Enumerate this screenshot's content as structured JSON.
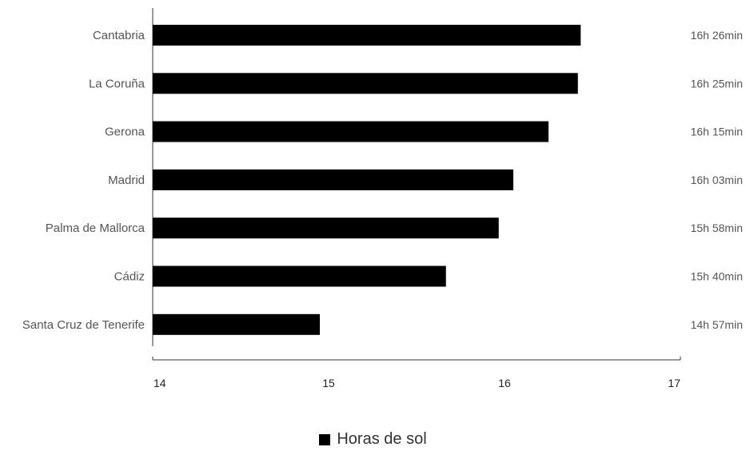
{
  "chart_data": {
    "type": "bar",
    "orientation": "horizontal",
    "categories": [
      "Cantabria",
      "La Coruña",
      "Gerona",
      "Madrid",
      "Palma de Mallorca",
      "Cádiz",
      "Santa Cruz de Tenerife"
    ],
    "series": [
      {
        "name": "Horas de sol",
        "values": [
          16.433,
          16.417,
          16.25,
          16.05,
          15.967,
          15.667,
          14.95
        ],
        "value_labels": [
          "16h 26min",
          "16h 25min",
          "16h 15min",
          "16h 03min",
          "15h 58min",
          "15h 40min",
          "14h 57min"
        ],
        "color": "#000000"
      }
    ],
    "xlim": [
      14,
      17
    ],
    "xticks": [
      "14",
      "15",
      "16",
      "17"
    ],
    "title": "",
    "xlabel": "",
    "ylabel": "",
    "grid": false,
    "legend_position": "bottom-center"
  }
}
